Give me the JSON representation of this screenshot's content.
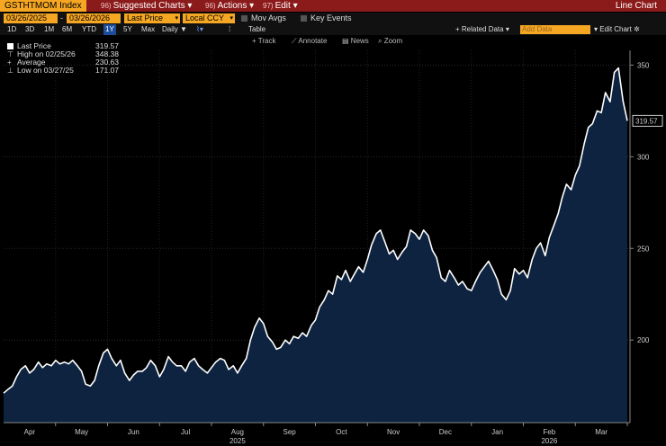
{
  "header": {
    "ticker": "GSTHTMOM Index",
    "menus": [
      {
        "num": "96)",
        "label": "Suggested Charts",
        "arrow": "▾"
      },
      {
        "num": "96)",
        "label": "Actions",
        "arrow": "▾"
      },
      {
        "num": "97)",
        "label": "Edit",
        "arrow": "▾"
      }
    ],
    "chart_type": "Line Chart"
  },
  "controls": {
    "start_date": "03/26/2025",
    "end_date": "03/26/2026",
    "separator": "-",
    "field": "Last Price",
    "currency": "Local CCY",
    "mov_avgs": "Mov Avgs",
    "key_events": "Key Events"
  },
  "periods": [
    "1D",
    "3D",
    "1M",
    "6M",
    "YTD",
    "1Y",
    "5Y",
    "Max"
  ],
  "selected_period": "1Y",
  "frequency": "Daily",
  "table_label": "Table",
  "related_data": "+ Related Data",
  "add_data_placeholder": "Add Data",
  "edit_chart": "Edit Chart",
  "tools": [
    "Track",
    "Annotate",
    "News",
    "Zoom"
  ],
  "legend": [
    {
      "label": "Last Price",
      "value": "319.57"
    },
    {
      "label": "High on 02/25/26",
      "value": "348.38"
    },
    {
      "label": "Average",
      "value": "230.63"
    },
    {
      "label": "Low on 03/27/25",
      "value": "171.07"
    }
  ],
  "last_price_tag": "319.57",
  "colors": {
    "line": "#ffffff",
    "fill": "#0d2340",
    "accent": "#f5a623",
    "header": "#8b1a1a"
  },
  "chart_data": {
    "type": "area",
    "title": "GSTHTMOM Index",
    "ylim": [
      155,
      358
    ],
    "y_ticks": [
      200,
      250,
      300,
      350
    ],
    "x_month_labels": [
      "Apr",
      "May",
      "Jun",
      "Jul",
      "Aug",
      "Sep",
      "Oct",
      "Nov",
      "Dec",
      "Jan",
      "Feb",
      "Mar"
    ],
    "x_year_labels": [
      {
        "label": "2025",
        "month": 4
      },
      {
        "label": "2026",
        "month": 10
      }
    ],
    "x_range_months": [
      0,
      12.0
    ],
    "series": [
      {
        "name": "Last Price",
        "points": [
          [
            0.0,
            171.1
          ],
          [
            0.08,
            173
          ],
          [
            0.17,
            175
          ],
          [
            0.25,
            180
          ],
          [
            0.33,
            184
          ],
          [
            0.42,
            186
          ],
          [
            0.5,
            182
          ],
          [
            0.58,
            184
          ],
          [
            0.67,
            188
          ],
          [
            0.75,
            185
          ],
          [
            0.83,
            187
          ],
          [
            0.92,
            186
          ],
          [
            1.0,
            189
          ],
          [
            1.08,
            187
          ],
          [
            1.17,
            188
          ],
          [
            1.25,
            187
          ],
          [
            1.33,
            189
          ],
          [
            1.42,
            186
          ],
          [
            1.5,
            183
          ],
          [
            1.58,
            176
          ],
          [
            1.67,
            175
          ],
          [
            1.75,
            178
          ],
          [
            1.83,
            186
          ],
          [
            1.92,
            193
          ],
          [
            2.0,
            195
          ],
          [
            2.08,
            190
          ],
          [
            2.17,
            186
          ],
          [
            2.25,
            189
          ],
          [
            2.33,
            182
          ],
          [
            2.42,
            178
          ],
          [
            2.5,
            181
          ],
          [
            2.58,
            183
          ],
          [
            2.67,
            183
          ],
          [
            2.75,
            185
          ],
          [
            2.83,
            189
          ],
          [
            2.92,
            186
          ],
          [
            3.0,
            180
          ],
          [
            3.08,
            184
          ],
          [
            3.17,
            191
          ],
          [
            3.25,
            188
          ],
          [
            3.33,
            186
          ],
          [
            3.42,
            186
          ],
          [
            3.5,
            183
          ],
          [
            3.58,
            188
          ],
          [
            3.67,
            190
          ],
          [
            3.75,
            186
          ],
          [
            3.83,
            184
          ],
          [
            3.92,
            182
          ],
          [
            4.0,
            185
          ],
          [
            4.08,
            188
          ],
          [
            4.17,
            190
          ],
          [
            4.25,
            189
          ],
          [
            4.33,
            184
          ],
          [
            4.42,
            186
          ],
          [
            4.5,
            182
          ],
          [
            4.58,
            186
          ],
          [
            4.67,
            190
          ],
          [
            4.75,
            200
          ],
          [
            4.83,
            207
          ],
          [
            4.92,
            212
          ],
          [
            5.0,
            209
          ],
          [
            5.08,
            202
          ],
          [
            5.17,
            199
          ],
          [
            5.25,
            195
          ],
          [
            5.33,
            196
          ],
          [
            5.42,
            200
          ],
          [
            5.5,
            198
          ],
          [
            5.58,
            202
          ],
          [
            5.67,
            201
          ],
          [
            5.75,
            204
          ],
          [
            5.83,
            202
          ],
          [
            5.92,
            208
          ],
          [
            6.0,
            211
          ],
          [
            6.08,
            218
          ],
          [
            6.17,
            222
          ],
          [
            6.25,
            227
          ],
          [
            6.33,
            225
          ],
          [
            6.42,
            235
          ],
          [
            6.5,
            233
          ],
          [
            6.58,
            238
          ],
          [
            6.67,
            232
          ],
          [
            6.75,
            236
          ],
          [
            6.83,
            240
          ],
          [
            6.92,
            237
          ],
          [
            7.0,
            244
          ],
          [
            7.08,
            252
          ],
          [
            7.17,
            258
          ],
          [
            7.25,
            260
          ],
          [
            7.33,
            254
          ],
          [
            7.42,
            247
          ],
          [
            7.5,
            249
          ],
          [
            7.58,
            244
          ],
          [
            7.67,
            248
          ],
          [
            7.75,
            251
          ],
          [
            7.83,
            260
          ],
          [
            7.92,
            258
          ],
          [
            8.0,
            255
          ],
          [
            8.08,
            260
          ],
          [
            8.17,
            257
          ],
          [
            8.25,
            249
          ],
          [
            8.33,
            245
          ],
          [
            8.42,
            234
          ],
          [
            8.5,
            232
          ],
          [
            8.58,
            238
          ],
          [
            8.67,
            234
          ],
          [
            8.75,
            230
          ],
          [
            8.83,
            232
          ],
          [
            8.92,
            228
          ],
          [
            9.0,
            227
          ],
          [
            9.08,
            232
          ],
          [
            9.17,
            237
          ],
          [
            9.25,
            240
          ],
          [
            9.33,
            243
          ],
          [
            9.42,
            238
          ],
          [
            9.5,
            233
          ],
          [
            9.58,
            225
          ],
          [
            9.67,
            222
          ],
          [
            9.75,
            227
          ],
          [
            9.83,
            239
          ],
          [
            9.92,
            236
          ],
          [
            10.0,
            238
          ],
          [
            10.08,
            234
          ],
          [
            10.17,
            244
          ],
          [
            10.25,
            250
          ],
          [
            10.33,
            253
          ],
          [
            10.42,
            246
          ],
          [
            10.5,
            256
          ],
          [
            10.58,
            262
          ],
          [
            10.67,
            269
          ],
          [
            10.75,
            278
          ],
          [
            10.83,
            285
          ],
          [
            10.92,
            282
          ],
          [
            11.0,
            290
          ],
          [
            11.08,
            295
          ],
          [
            11.17,
            307
          ],
          [
            11.25,
            316
          ],
          [
            11.33,
            318
          ],
          [
            11.42,
            325
          ],
          [
            11.5,
            324
          ],
          [
            11.58,
            335
          ],
          [
            11.67,
            330
          ],
          [
            11.75,
            346
          ],
          [
            11.83,
            348.4
          ],
          [
            11.92,
            330
          ],
          [
            12.0,
            319.6
          ]
        ]
      }
    ]
  }
}
